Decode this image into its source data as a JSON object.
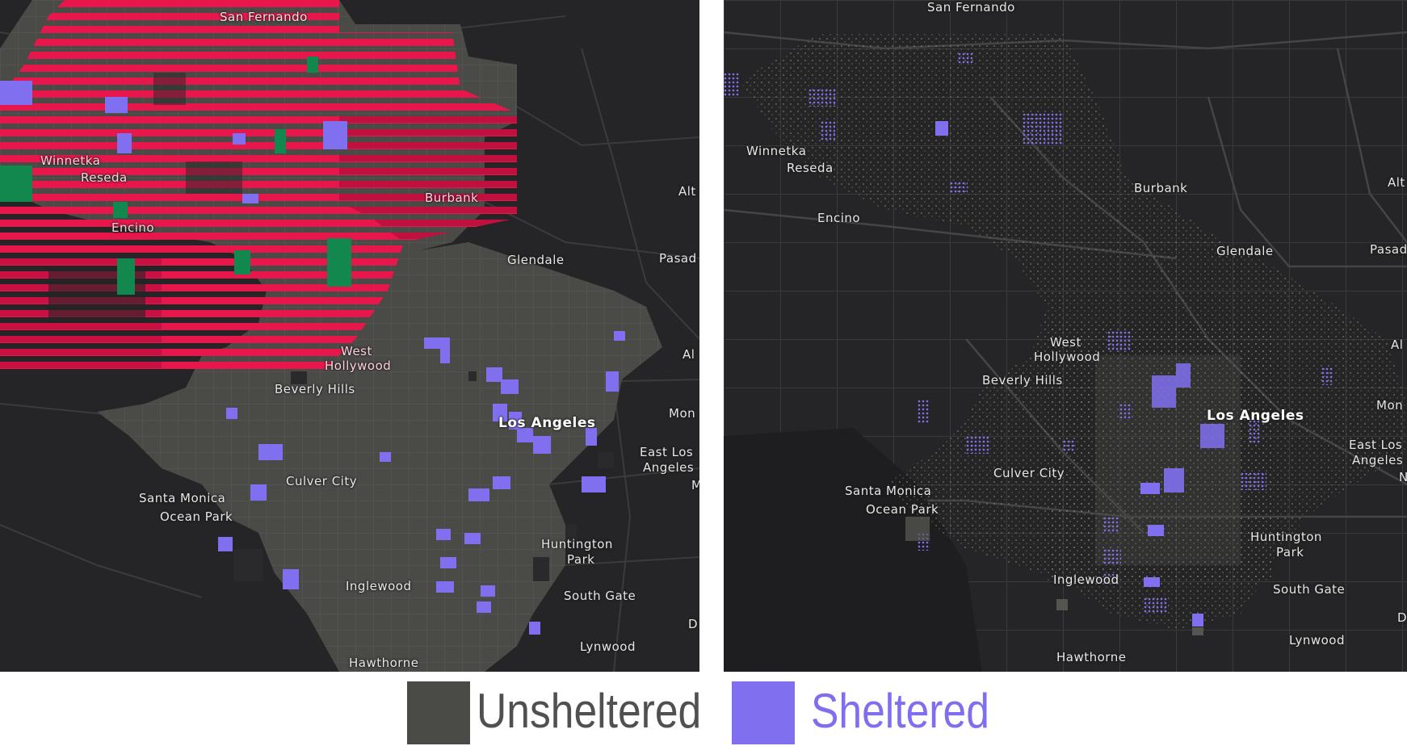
{
  "colors": {
    "background": "#252527",
    "unsheltered": "#4a4a47",
    "sheltered": "#8070f0",
    "highlight_red": "#e8174b",
    "highlight_green": "#12874e",
    "road": "#3a3a3c"
  },
  "left_map": {
    "labels": {
      "san_fernando": "San Fernando",
      "winnetka": "Winnetka",
      "reseda": "Reseda",
      "encino": "Encino",
      "burbank": "Burbank",
      "glendale": "Glendale",
      "pasadena": "Pasad",
      "altadena": "Alt",
      "alhambra": "Al",
      "west_hollywood_1": "West",
      "west_hollywood_2": "Hollywood",
      "beverly_hills": "Beverly Hills",
      "los_angeles": "Los Angeles",
      "monterey_park": "Mon",
      "east_la_1": "East Los",
      "east_la_2": "Angeles",
      "m": "M",
      "culver_city": "Culver City",
      "santa_monica": "Santa Monica",
      "ocean_park": "Ocean Park",
      "huntington_park_1": "Huntington",
      "huntington_park_2": "Park",
      "inglewood": "Inglewood",
      "south_gate": "South Gate",
      "lynwood": "Lynwood",
      "d": "D",
      "hawthorne": "Hawthorne"
    }
  },
  "right_map": {
    "labels": {
      "san_fernando": "San Fernando",
      "winnetka": "Winnetka",
      "reseda": "Reseda",
      "encino": "Encino",
      "burbank": "Burbank",
      "glendale": "Glendale",
      "pasadena": "Pasad",
      "altadena": "Alt",
      "alhambra": "Al",
      "west_hollywood_1": "West",
      "west_hollywood_2": "Hollywood",
      "beverly_hills": "Beverly Hills",
      "los_angeles": "Los Angeles",
      "monterey_park": "Mon",
      "east_la_1": "East Los",
      "east_la_2": "Angeles",
      "n": "N",
      "culver_city": "Culver City",
      "santa_monica": "Santa Monica",
      "ocean_park": "Ocean Park",
      "huntington_park_1": "Huntington",
      "huntington_park_2": "Park",
      "inglewood": "Inglewood",
      "south_gate": "South Gate",
      "lynwood": "Lynwood",
      "d": "D",
      "hawthorne": "Hawthorne"
    }
  },
  "legend": {
    "unsheltered_label": "Unsheltered",
    "sheltered_label": "Sheltered",
    "unsheltered_text_color": "#505050",
    "sheltered_text_color": "#7f6ff0"
  }
}
